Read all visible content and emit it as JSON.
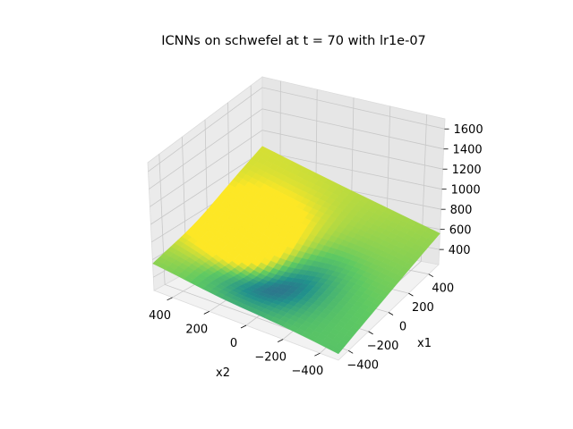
{
  "chart_data": {
    "type": "surface3d",
    "title": "ICNNs on schwefel at t = 70 with lr1e-07",
    "xlabel": "x2",
    "ylabel": "x1",
    "zlabel": "",
    "x2_ticks": [
      400,
      200,
      0,
      -200,
      -400
    ],
    "x2_tick_labels": [
      "400",
      "200",
      "0",
      "−200",
      "−400"
    ],
    "x1_ticks": [
      -400,
      -200,
      0,
      200,
      400
    ],
    "x1_tick_labels": [
      "−400",
      "−200",
      "0",
      "200",
      "400"
    ],
    "z_ticks": [
      400,
      600,
      800,
      1000,
      1200,
      1400,
      1600
    ],
    "z_tick_labels": [
      "400",
      "600",
      "800",
      "1000",
      "1200",
      "1400",
      "1600"
    ],
    "x2_range": [
      -500,
      500
    ],
    "x1_range": [
      -500,
      500
    ],
    "z_range": [
      250,
      1700
    ],
    "colormap": "viridis",
    "grid": true,
    "surface_samples": {
      "note_axes": "z at corners of the plotted domain",
      "corners": [
        {
          "x2": 500,
          "x1": -500,
          "z": 560
        },
        {
          "x2": -500,
          "x1": -500,
          "z": 310
        },
        {
          "x2": -500,
          "x1": 500,
          "z": 560
        },
        {
          "x2": 500,
          "x1": 500,
          "z": 1050
        }
      ],
      "min_point": {
        "x2": 100,
        "x1": -150,
        "z": 240
      }
    }
  }
}
